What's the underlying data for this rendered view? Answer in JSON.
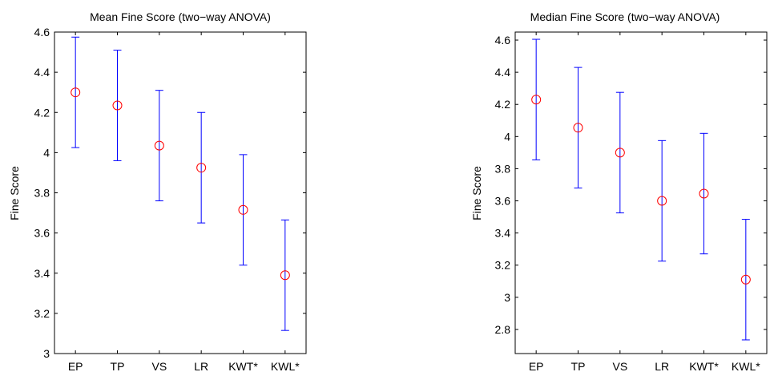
{
  "chart_data": [
    {
      "type": "scatter",
      "title": "Mean Fine Score (two−way ANOVA)",
      "xlabel": "",
      "ylabel": "Fine Score",
      "categories": [
        "EP",
        "TP",
        "VS",
        "LR",
        "KWT*",
        "KWL*"
      ],
      "values": [
        4.3,
        4.235,
        4.035,
        3.925,
        3.715,
        3.39
      ],
      "lower": [
        4.025,
        3.96,
        3.76,
        3.65,
        3.44,
        3.115
      ],
      "upper": [
        4.575,
        4.51,
        4.31,
        4.2,
        3.99,
        3.665
      ],
      "ylim": [
        3,
        4.6
      ],
      "yticks": [
        "3",
        "3.2",
        "3.4",
        "3.6",
        "3.8",
        "4",
        "4.2",
        "4.4",
        "4.6"
      ],
      "grid": false,
      "marker_color": "#ff0000",
      "errorbar_color": "#0000ff"
    },
    {
      "type": "scatter",
      "title": "Median Fine Score (two−way ANOVA)",
      "xlabel": "",
      "ylabel": "Fine Score",
      "categories": [
        "EP",
        "TP",
        "VS",
        "LR",
        "KWT*",
        "KWL*"
      ],
      "values": [
        4.23,
        4.055,
        3.9,
        3.6,
        3.645,
        3.11
      ],
      "lower": [
        3.855,
        3.68,
        3.525,
        3.225,
        3.27,
        2.735
      ],
      "upper": [
        4.605,
        4.43,
        4.275,
        3.975,
        4.02,
        3.485
      ],
      "ylim": [
        2.65,
        4.65
      ],
      "yticks": [
        "2.8",
        "3",
        "3.2",
        "3.4",
        "3.6",
        "3.8",
        "4",
        "4.2",
        "4.4",
        "4.6"
      ],
      "grid": false,
      "marker_color": "#ff0000",
      "errorbar_color": "#0000ff"
    }
  ]
}
